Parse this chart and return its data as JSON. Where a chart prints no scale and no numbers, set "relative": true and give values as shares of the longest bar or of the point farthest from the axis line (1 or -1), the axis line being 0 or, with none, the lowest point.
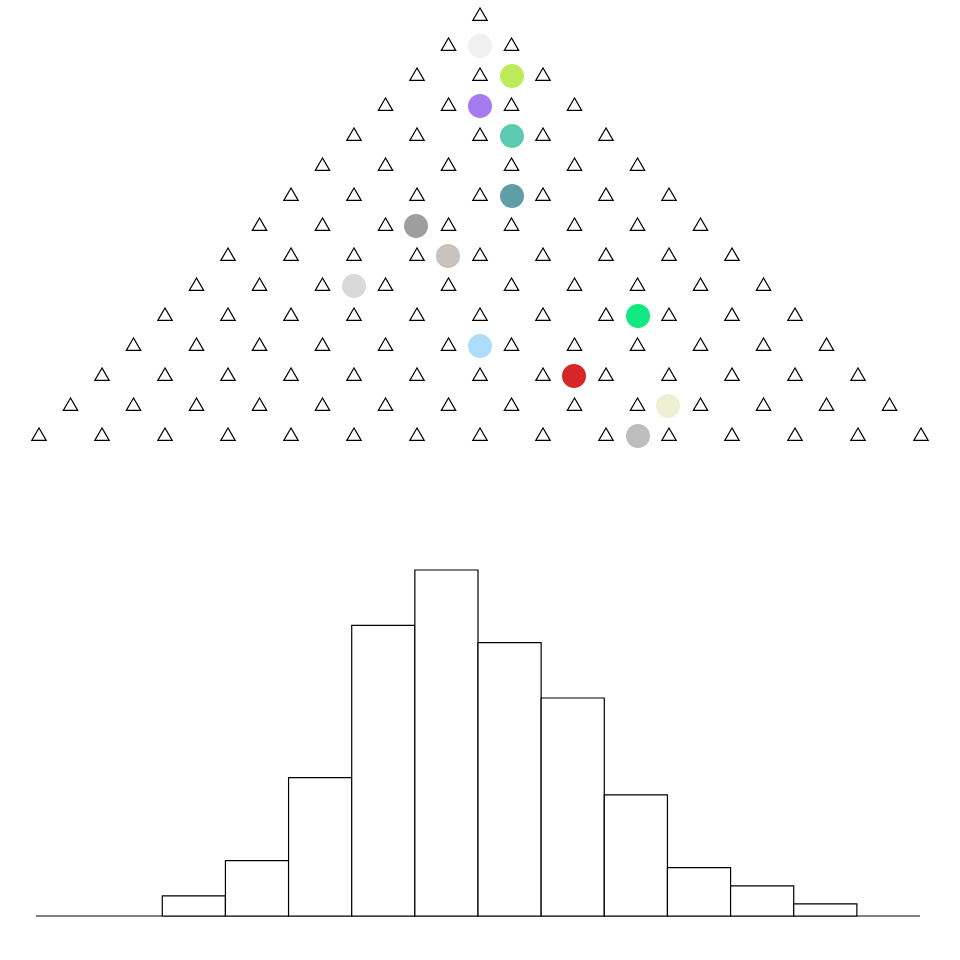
{
  "chart_data": {
    "type": "bar",
    "relative": true,
    "color": "#ffffff",
    "categories": [
      null,
      null,
      null,
      null,
      null,
      null,
      null,
      null,
      null,
      null,
      null
    ],
    "values": [
      0.058,
      0.16,
      0.4,
      0.84,
      1,
      0.79,
      0.63,
      0.35,
      0.14,
      0.087,
      0.035
    ]
  }
}
